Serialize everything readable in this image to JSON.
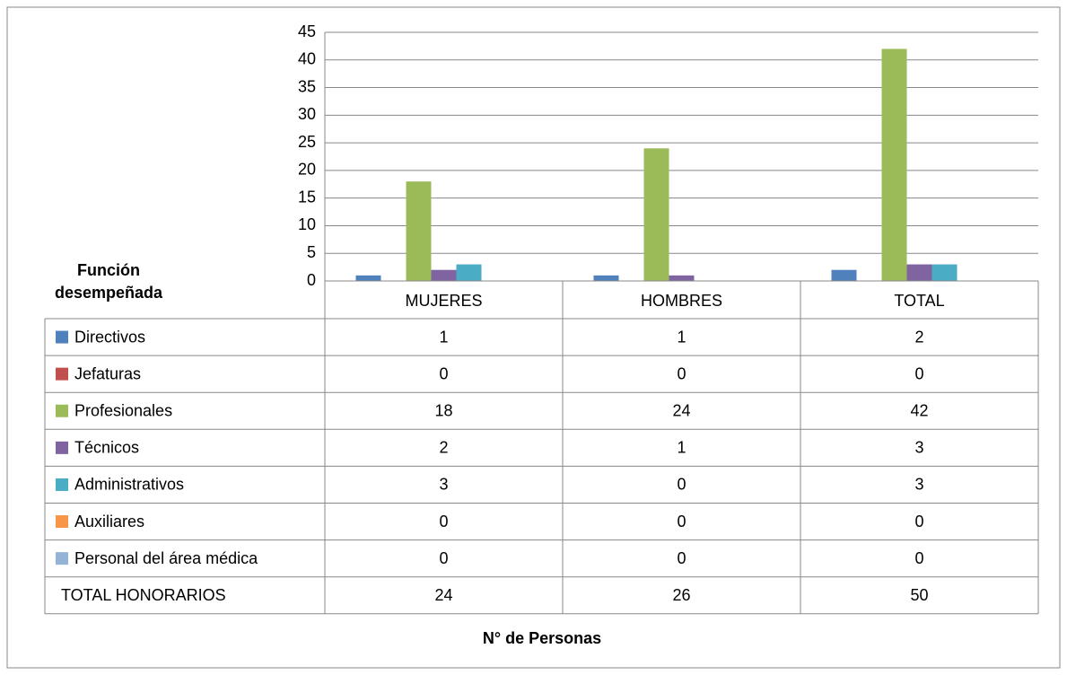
{
  "chart_data": {
    "type": "bar",
    "categories": [
      "MUJERES",
      "HOMBRES",
      "TOTAL"
    ],
    "series": [
      {
        "name": "Directivos",
        "color": "#4f81bd",
        "values": [
          1,
          1,
          2
        ]
      },
      {
        "name": "Jefaturas",
        "color": "#c0504d",
        "values": [
          0,
          0,
          0
        ]
      },
      {
        "name": "Profesionales",
        "color": "#9bbb59",
        "values": [
          18,
          24,
          42
        ]
      },
      {
        "name": "Técnicos",
        "color": "#8064a2",
        "values": [
          2,
          1,
          3
        ]
      },
      {
        "name": "Administrativos",
        "color": "#4bacc6",
        "values": [
          3,
          0,
          3
        ]
      },
      {
        "name": "Auxiliares",
        "color": "#f79646",
        "values": [
          0,
          0,
          0
        ]
      },
      {
        "name": "Personal del área médica",
        "color": "#95b3d7",
        "values": [
          0,
          0,
          0
        ]
      }
    ],
    "totals": {
      "name": "TOTAL HONORARIOS",
      "values": [
        24,
        26,
        50
      ]
    },
    "table_header": "Función desempeñada",
    "x_label": "N° de Personas",
    "ylim": [
      0,
      45
    ],
    "yticks": [
      0,
      5,
      10,
      15,
      20,
      25,
      30,
      35,
      40,
      45
    ],
    "grid": true
  }
}
